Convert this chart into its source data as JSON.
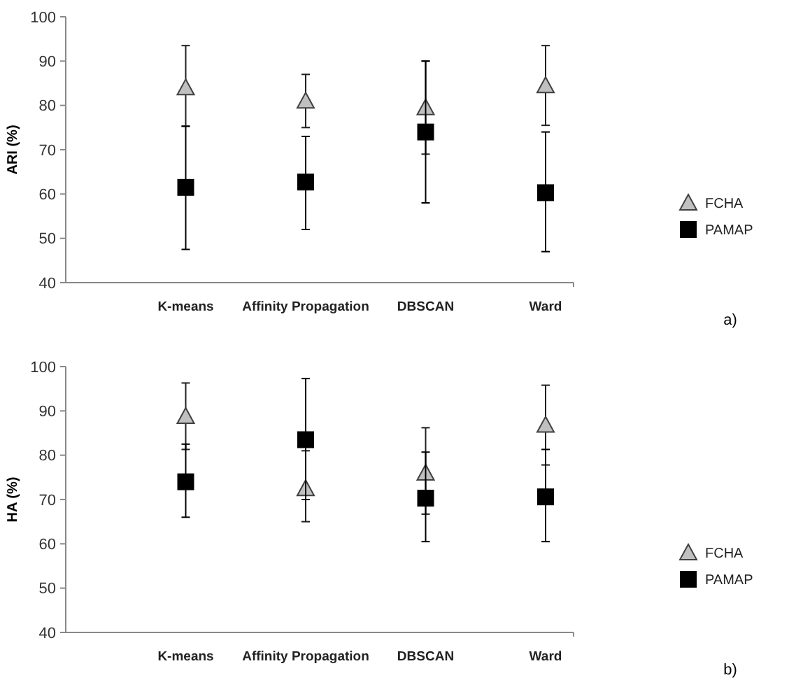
{
  "chart_data": [
    {
      "type": "scatter",
      "ylabel": "ARI (%)",
      "categories": [
        null,
        "K-means",
        "Affinity Propagation",
        "DBSCAN",
        "Ward"
      ],
      "ylim": [
        40,
        100
      ],
      "yticks": [
        40,
        50,
        60,
        70,
        80,
        90,
        100
      ],
      "grid": false,
      "legend": "right",
      "annotations": [
        "a)"
      ],
      "series": [
        {
          "name": "FCHA",
          "color": "#c0c0c0",
          "marker": "triangle",
          "values": [
            null,
            84,
            81,
            79.5,
            84.5
          ],
          "errors": [
            null,
            [
              75.3,
              93.5
            ],
            [
              75,
              87
            ],
            [
              69,
              90
            ],
            [
              75.5,
              93.5
            ]
          ]
        },
        {
          "name": "PAMAP",
          "color": "#000000",
          "marker": "square",
          "values": [
            null,
            61.5,
            62.7,
            74,
            60.3
          ],
          "errors": [
            null,
            [
              47.5,
              75.3
            ],
            [
              52,
              73
            ],
            [
              58,
              90
            ],
            [
              47,
              74
            ]
          ]
        }
      ]
    },
    {
      "type": "scatter",
      "ylabel": "HA (%)",
      "categories": [
        null,
        "K-means",
        "Affinity Propagation",
        "DBSCAN",
        "Ward"
      ],
      "ylim": [
        40,
        100
      ],
      "yticks": [
        40,
        50,
        60,
        70,
        80,
        90,
        100
      ],
      "grid": false,
      "legend": "right",
      "annotations": [
        "b)"
      ],
      "series": [
        {
          "name": "FCHA",
          "color": "#c0c0c0",
          "marker": "triangle",
          "values": [
            null,
            88.8,
            72.5,
            76,
            86.8
          ],
          "errors": [
            null,
            [
              81.3,
              96.3
            ],
            [
              65,
              81
            ],
            [
              66.7,
              86.2
            ],
            [
              77.8,
              95.8
            ]
          ]
        },
        {
          "name": "PAMAP",
          "color": "#000000",
          "marker": "square",
          "values": [
            null,
            74,
            83.5,
            70.3,
            70.6
          ],
          "errors": [
            null,
            [
              66,
              82.5
            ],
            [
              70,
              97.3
            ],
            [
              60.5,
              80.7
            ],
            [
              60.5,
              81.3
            ]
          ]
        }
      ]
    }
  ]
}
